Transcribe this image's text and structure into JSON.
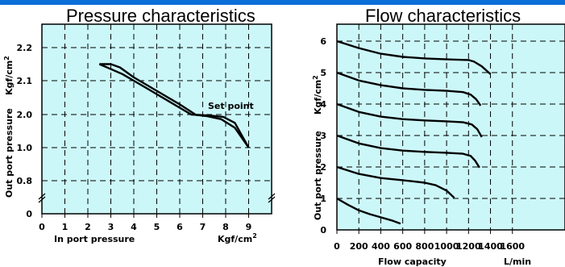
{
  "colors": {
    "accent": "#0a6fd9",
    "plot_bg": "#ccf7f9",
    "line": "#000000"
  },
  "pressure": {
    "title": "Pressure characteristics",
    "xlabel": "In port pressure",
    "xunit": "Kgf/cm",
    "xunit_sup": "2",
    "ylabel": "Out port pressure",
    "yunit": "Kgf/cm",
    "yunit_sup": "2",
    "annotation": "Set point"
  },
  "flow": {
    "title": "Flow characteristics",
    "xlabel": "Flow capacity",
    "xunit": "L/min",
    "ylabel": "Out port pressure",
    "yunit": "Kgf/cm",
    "yunit_sup": "2"
  },
  "chart_data": [
    {
      "type": "line",
      "title": "Pressure characteristics",
      "xlabel": "In port pressure",
      "ylabel": "Out port pressure",
      "x_ticks": [
        "0",
        "1",
        "2",
        "3",
        "4",
        "5",
        "6",
        "7",
        "8",
        "9"
      ],
      "y_ticks": [
        "0",
        "0.8",
        "1.0",
        "2.0",
        "2.1",
        "2.2"
      ],
      "xlim": [
        0,
        10
      ],
      "grid": true,
      "series": [
        {
          "x": [
            2.5,
            3.0,
            3.4,
            4,
            5,
            6,
            6.7,
            7.2,
            7.8,
            8.4,
            9.0
          ],
          "y": [
            2.15,
            2.15,
            2.14,
            2.11,
            2.07,
            2.03,
            1.99,
            1.95,
            1.86,
            1.6,
            1.0
          ]
        },
        {
          "x": [
            2.5,
            3.5,
            4.5,
            5.5,
            6.5,
            7.3,
            7.9,
            8.4,
            9.0
          ],
          "y": [
            2.15,
            2.12,
            2.08,
            2.04,
            2.0,
            1.97,
            1.93,
            1.75,
            1.0
          ]
        }
      ]
    },
    {
      "type": "line",
      "title": "Flow characteristics",
      "xlabel": "Flow capacity",
      "ylabel": "Out port pressure",
      "x_ticks": [
        "0",
        "200",
        "400",
        "600",
        "800",
        "1000",
        "1200",
        "1400",
        "1600"
      ],
      "y_ticks": [
        "0",
        "1",
        "2",
        "3",
        "4",
        "5",
        "6"
      ],
      "xlim": [
        0,
        1700
      ],
      "ylim": [
        0,
        6.5
      ],
      "grid": true,
      "series": [
        {
          "x": [
            0,
            200,
            400,
            600,
            800,
            1000,
            1200,
            1250,
            1320,
            1400
          ],
          "y": [
            6.0,
            5.78,
            5.6,
            5.5,
            5.45,
            5.42,
            5.4,
            5.35,
            5.2,
            4.95
          ]
        },
        {
          "x": [
            0,
            200,
            400,
            600,
            800,
            1000,
            1150,
            1220,
            1270,
            1310
          ],
          "y": [
            5.0,
            4.75,
            4.6,
            4.5,
            4.45,
            4.42,
            4.38,
            4.3,
            4.15,
            3.95
          ]
        },
        {
          "x": [
            0,
            200,
            400,
            600,
            800,
            1000,
            1150,
            1230,
            1280,
            1320
          ],
          "y": [
            4.0,
            3.75,
            3.6,
            3.52,
            3.48,
            3.45,
            3.42,
            3.35,
            3.2,
            2.95
          ]
        },
        {
          "x": [
            0,
            200,
            400,
            600,
            800,
            1000,
            1150,
            1220,
            1260,
            1300
          ],
          "y": [
            3.0,
            2.75,
            2.6,
            2.52,
            2.48,
            2.45,
            2.42,
            2.35,
            2.2,
            1.98
          ]
        },
        {
          "x": [
            0,
            200,
            400,
            600,
            800,
            900,
            1000,
            1070
          ],
          "y": [
            2.0,
            1.78,
            1.65,
            1.58,
            1.5,
            1.42,
            1.25,
            1.02
          ]
        },
        {
          "x": [
            0,
            100,
            200,
            300,
            400,
            500,
            580
          ],
          "y": [
            1.0,
            0.8,
            0.62,
            0.5,
            0.4,
            0.3,
            0.2
          ]
        }
      ]
    }
  ]
}
